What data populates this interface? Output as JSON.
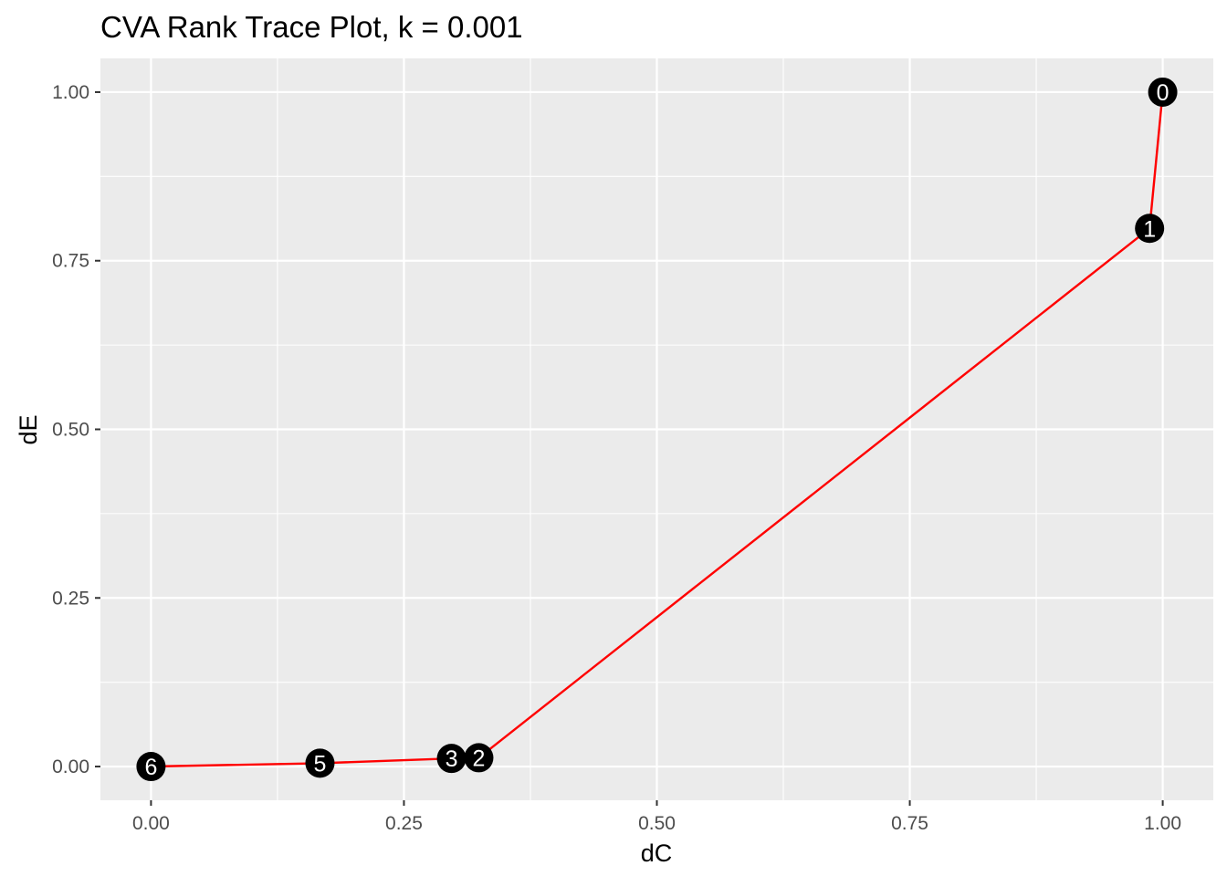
{
  "chart_data": {
    "type": "line",
    "title": "CVA Rank Trace Plot, k = 0.001",
    "xlabel": "dC",
    "ylabel": "dE",
    "xlim": [
      -0.05,
      1.05
    ],
    "ylim": [
      -0.05,
      1.05
    ],
    "x_ticks": [
      0.0,
      0.25,
      0.5,
      0.75,
      1.0
    ],
    "x_tick_labels": [
      "0.00",
      "0.25",
      "0.50",
      "0.75",
      "1.00"
    ],
    "y_ticks": [
      0.0,
      0.25,
      0.5,
      0.75,
      1.0
    ],
    "y_tick_labels": [
      "0.00",
      "0.25",
      "0.50",
      "0.75",
      "1.00"
    ],
    "grid": true,
    "line_color": "#ff0000",
    "point_color": "#000000",
    "panel_color": "#ebebeb",
    "points": [
      {
        "label": "0",
        "x": 1.0,
        "y": 1.0
      },
      {
        "label": "1",
        "x": 0.987,
        "y": 0.798
      },
      {
        "label": "2",
        "x": 0.324,
        "y": 0.013
      },
      {
        "label": "3",
        "x": 0.297,
        "y": 0.012
      },
      {
        "label": "5",
        "x": 0.167,
        "y": 0.005
      },
      {
        "label": "6",
        "x": 0.0,
        "y": 0.0
      }
    ]
  }
}
